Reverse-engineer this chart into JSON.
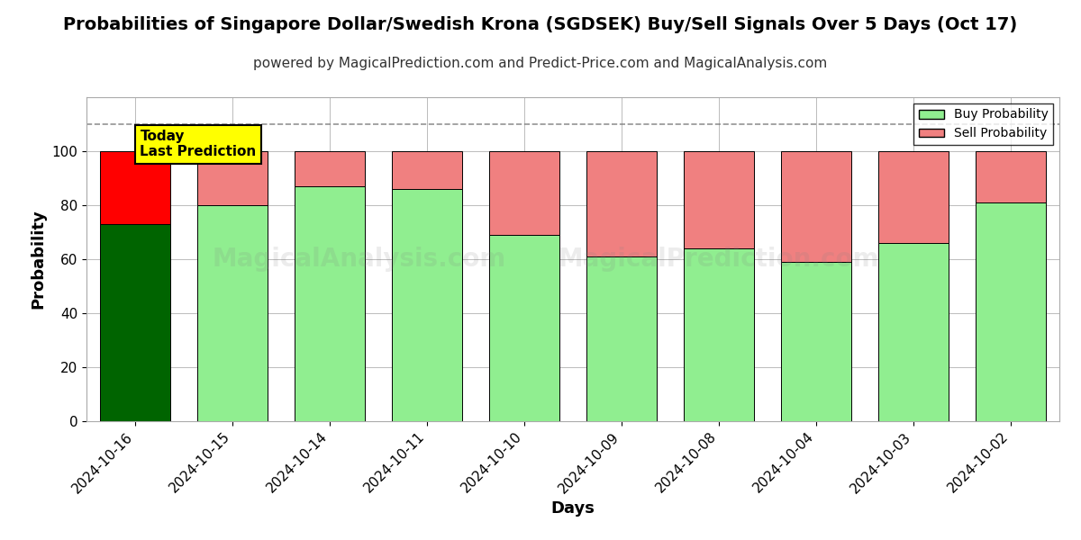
{
  "title": "Probabilities of Singapore Dollar/Swedish Krona (SGDSEK) Buy/Sell Signals Over 5 Days (Oct 17)",
  "subtitle": "powered by MagicalPrediction.com and Predict-Price.com and MagicalAnalysis.com",
  "xlabel": "Days",
  "ylabel": "Probability",
  "categories": [
    "2024-10-16",
    "2024-10-15",
    "2024-10-14",
    "2024-10-11",
    "2024-10-10",
    "2024-10-09",
    "2024-10-08",
    "2024-10-04",
    "2024-10-03",
    "2024-10-02"
  ],
  "buy_values": [
    73,
    80,
    87,
    86,
    69,
    61,
    64,
    59,
    66,
    81
  ],
  "sell_values": [
    27,
    20,
    13,
    14,
    31,
    39,
    36,
    41,
    34,
    19
  ],
  "today_bar_buy_color": "#006400",
  "today_bar_sell_color": "#FF0000",
  "other_bar_buy_color": "#90EE90",
  "other_bar_sell_color": "#F08080",
  "bar_edge_color": "#000000",
  "ylim": [
    0,
    120
  ],
  "yticks": [
    0,
    20,
    40,
    60,
    80,
    100
  ],
  "dashed_line_y": 110,
  "legend_buy_label": "Buy Probability",
  "legend_sell_label": "Sell Probability",
  "today_label_text": "Today\nLast Prediction",
  "title_fontsize": 14,
  "subtitle_fontsize": 11,
  "axis_label_fontsize": 13,
  "tick_fontsize": 11,
  "background_color": "#ffffff",
  "grid_color": "#bbbbbb",
  "bar_width": 0.72
}
